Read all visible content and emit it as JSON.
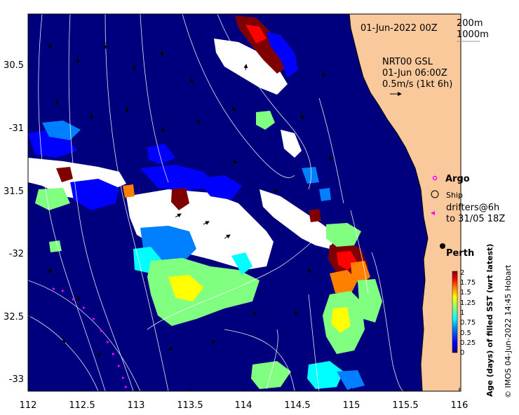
{
  "map": {
    "date": "01-Jun-2022 00Z",
    "depth_labels": [
      "200m",
      "1000m"
    ],
    "current_title": "NRT00 GSL",
    "current_time": "01-Jun 06:00Z",
    "current_scale": "0.5m/s (1kt 6h)",
    "legend": {
      "argo": "Argo",
      "ship": "Ship",
      "drifters": "drifters@6h",
      "drifters_to": "to 31/05 18Z"
    },
    "place": "Perth",
    "credit": "© IMOS 04-Jun-2022 14:45 Hobart"
  },
  "axes": {
    "lon_ticks": [
      "112",
      "112.5",
      "113",
      "113.5",
      "114",
      "114.5",
      "115",
      "115.5",
      "116"
    ],
    "lat_ticks": [
      "30.5",
      "-31",
      "31.5",
      "-32",
      "32.5",
      "-33"
    ]
  },
  "colorbar": {
    "label": "Age (days) of filled SST (wrt latest)",
    "ticks": [
      "2",
      "1.75",
      "1.5",
      "1.25",
      "1",
      "0.75",
      "0.5",
      "0.25",
      "0"
    ],
    "colors": [
      "#00007f",
      "#0000ff",
      "#0080ff",
      "#00ffff",
      "#80ff80",
      "#ffff00",
      "#ff8000",
      "#ff0000",
      "#7f0000"
    ]
  }
}
